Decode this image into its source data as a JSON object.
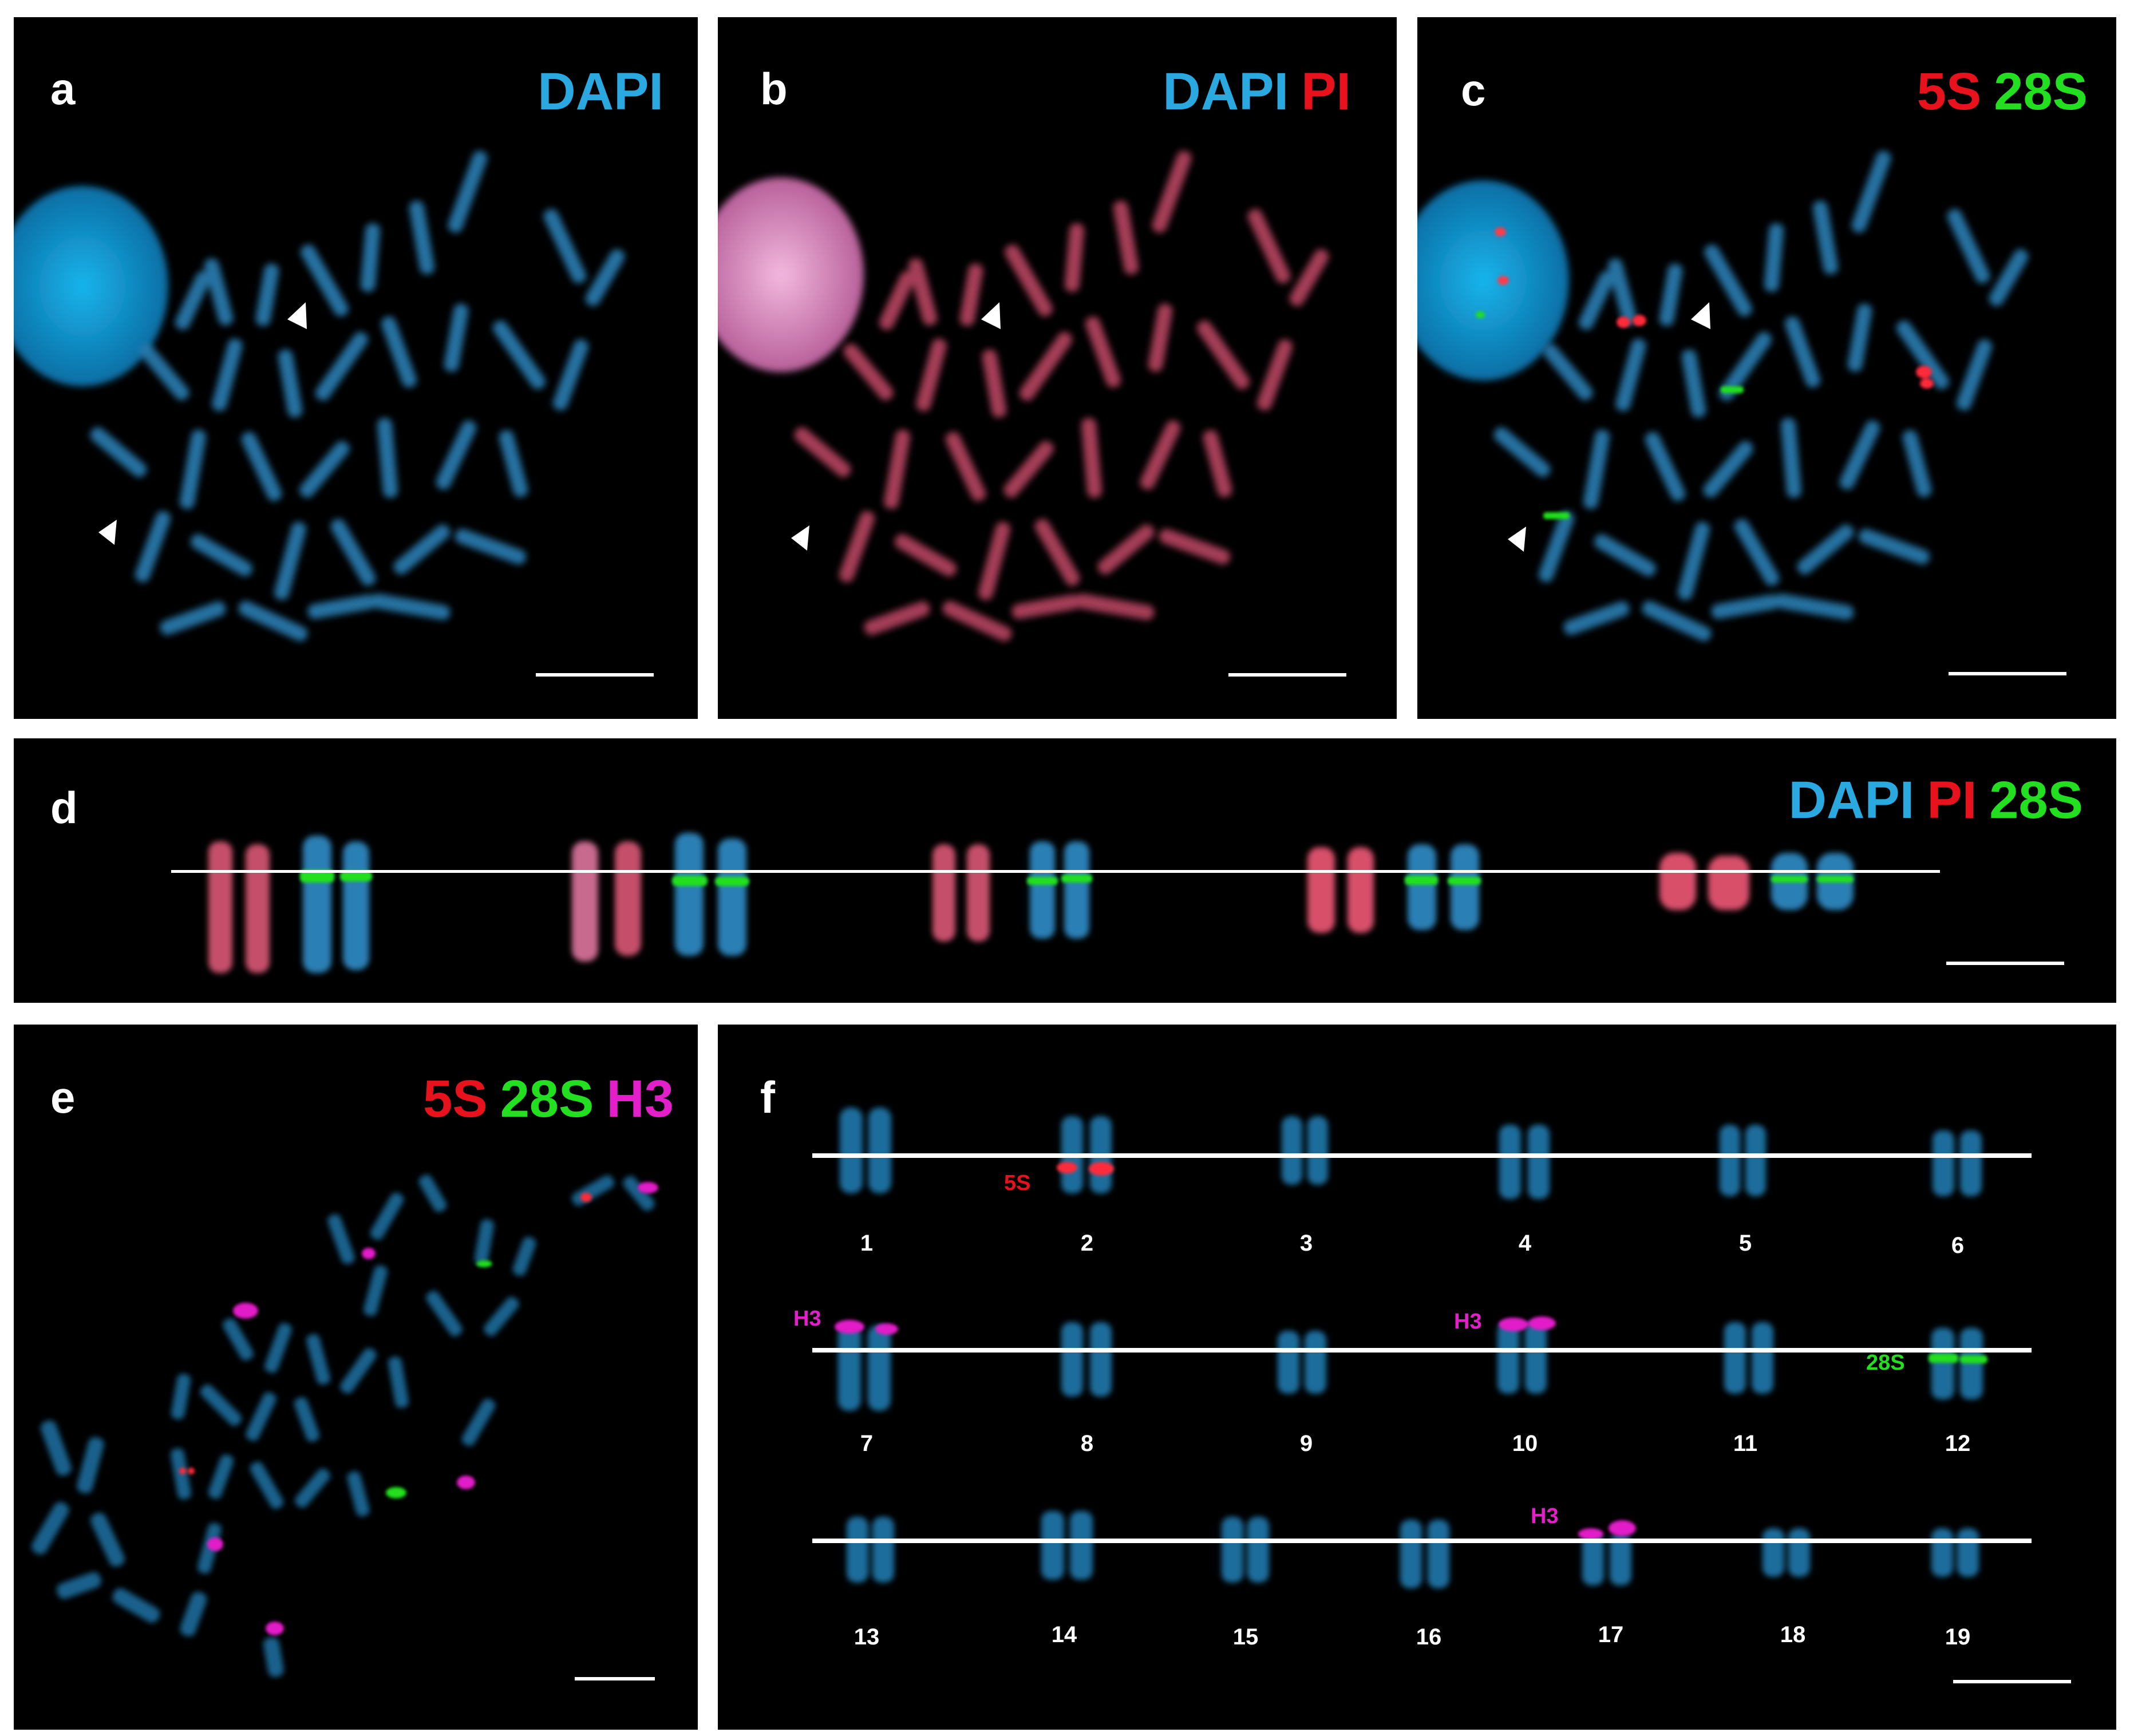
{
  "panels": {
    "a": {
      "letter": "a",
      "labels": [
        {
          "text": "DAPI",
          "color": "#29a9e0"
        }
      ]
    },
    "b": {
      "letter": "b",
      "labels": [
        {
          "text": "DAPI",
          "color": "#29a9e0"
        },
        {
          "text": "PI",
          "color": "#e8121c"
        }
      ]
    },
    "c": {
      "letter": "c",
      "labels": [
        {
          "text": "5S",
          "color": "#e8121c"
        },
        {
          "text": "28S",
          "color": "#22e01f"
        }
      ]
    },
    "d": {
      "letter": "d",
      "labels": [
        {
          "text": "DAPI",
          "color": "#29a9e0"
        },
        {
          "text": "PI",
          "color": "#e8121c"
        },
        {
          "text": "28S",
          "color": "#22e01f"
        }
      ]
    },
    "e": {
      "letter": "e",
      "labels": [
        {
          "text": "5S",
          "color": "#e8121c"
        },
        {
          "text": "28S",
          "color": "#22e01f"
        },
        {
          "text": "H3",
          "color": "#e21fc8"
        }
      ]
    },
    "f": {
      "letter": "f",
      "chromosome_numbers": [
        "1",
        "2",
        "3",
        "4",
        "5",
        "6",
        "7",
        "8",
        "9",
        "10",
        "11",
        "12",
        "13",
        "14",
        "15",
        "16",
        "17",
        "18",
        "19"
      ],
      "annotations": {
        "five_s": "5S",
        "h3_a": "H3",
        "h3_b": "H3",
        "h3_c": "H3",
        "twenty_eight_s": "28S"
      }
    }
  },
  "colors": {
    "dapi": "#2a8fc4",
    "pi": "#d8506a",
    "five_s": "#e8121c",
    "twenty_eight_s": "#22e01f",
    "h3": "#e21fc8"
  }
}
